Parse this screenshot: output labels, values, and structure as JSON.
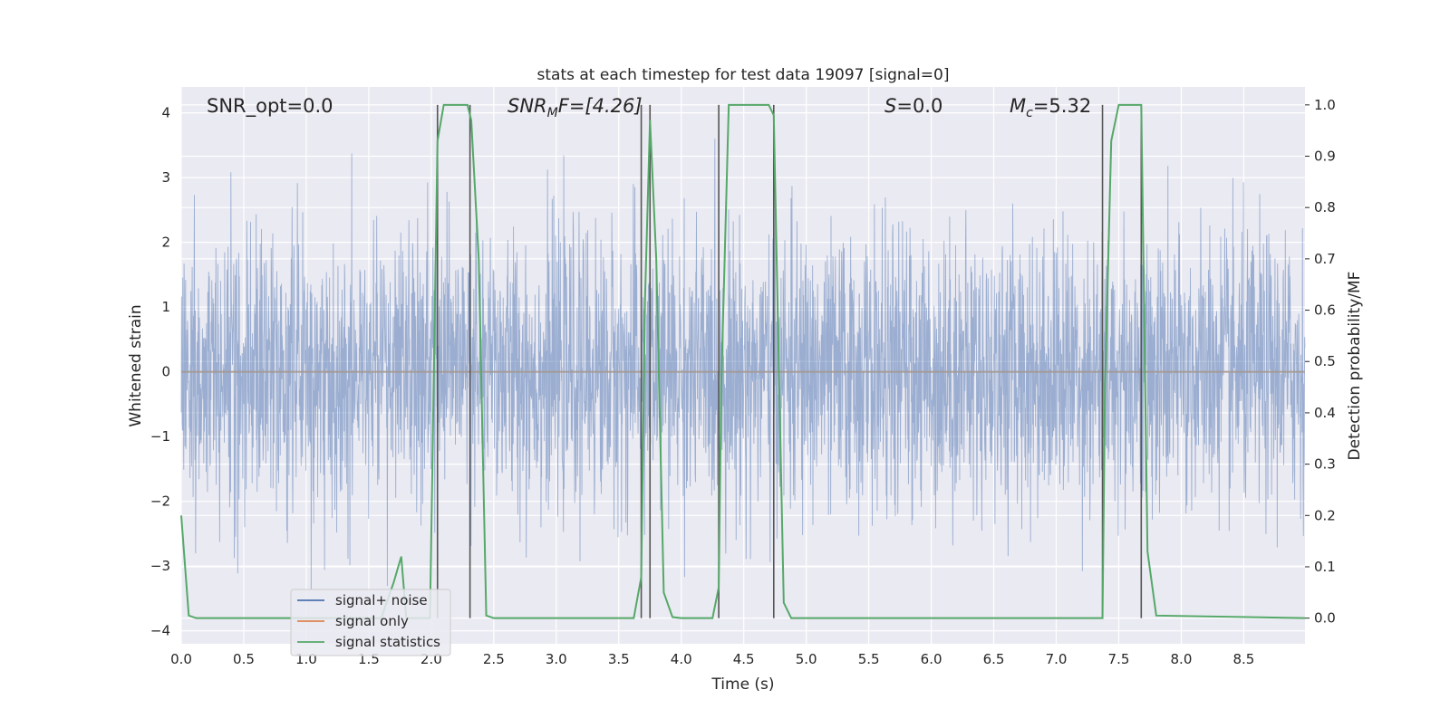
{
  "chart_data": {
    "type": "line",
    "title": "stats at each timestep for test data 19097 [signal=0]",
    "xlabel": "Time (s)",
    "ylabel": "Whitened strain",
    "y2label": "Detection probability/MF",
    "xlim": [
      0.0,
      8.99
    ],
    "ylim": [
      -4.2,
      4.4
    ],
    "y2lim": [
      -0.05,
      1.035
    ],
    "xticks": [
      "0.0",
      "0.5",
      "1.0",
      "1.5",
      "2.0",
      "2.5",
      "3.0",
      "3.5",
      "4.0",
      "4.5",
      "5.0",
      "5.5",
      "6.0",
      "6.5",
      "7.0",
      "7.5",
      "8.0",
      "8.5"
    ],
    "yticks": [
      "4",
      "3",
      "2",
      "1",
      "0",
      "−1",
      "−2",
      "−3",
      "−4"
    ],
    "y2ticks": [
      "1.0",
      "0.9",
      "0.8",
      "0.7",
      "0.6",
      "0.5",
      "0.4",
      "0.3",
      "0.2",
      "0.1",
      "0.0"
    ],
    "grid": true,
    "legend_position": "lower-left",
    "annotations": {
      "snr_opt": "SNR_opt=0.0",
      "snr_mf_prefix": "SNR",
      "snr_mf_sub": "M",
      "snr_mf_suffix": "F=[4.26]",
      "s_prefix": "S",
      "s_suffix": "=0.0",
      "mc_prefix": "M",
      "mc_sub": "c",
      "mc_suffix": "=5.32"
    },
    "series": [
      {
        "name": "signal+ noise",
        "color": "#4c72b0",
        "axis": "left",
        "noise_envelope": {
          "typical_peak": 2.2,
          "max": 3.6,
          "min": -3.6
        }
      },
      {
        "name": "signal only",
        "color": "#dd8452",
        "axis": "left",
        "constant": 0.0
      },
      {
        "name": "signal statistics",
        "color": "#55a868",
        "axis": "right",
        "x": [
          0.0,
          0.06,
          0.12,
          1.6,
          1.7,
          1.76,
          1.8,
          1.99,
          2.05,
          2.1,
          2.15,
          2.29,
          2.32,
          2.38,
          2.44,
          2.5,
          3.62,
          3.68,
          3.71,
          3.75,
          3.8,
          3.86,
          3.93,
          4.0,
          4.25,
          4.3,
          4.32,
          4.38,
          4.7,
          4.74,
          4.78,
          4.82,
          4.88,
          7.37,
          7.39,
          7.44,
          7.5,
          7.55,
          7.68,
          7.73,
          7.8,
          8.99
        ],
        "y": [
          0.2,
          0.005,
          0.0,
          0.0,
          0.07,
          0.12,
          0.0,
          0.0,
          0.93,
          1.0,
          1.0,
          1.0,
          0.97,
          0.7,
          0.005,
          0.0,
          0.0,
          0.08,
          0.62,
          0.97,
          0.7,
          0.05,
          0.002,
          0.0,
          0.0,
          0.06,
          0.45,
          1.0,
          1.0,
          0.98,
          0.5,
          0.03,
          0.0,
          0.0,
          0.45,
          0.93,
          1.0,
          1.0,
          1.0,
          0.13,
          0.005,
          0.0
        ]
      }
    ],
    "vlines": [
      2.05,
      2.31,
      3.68,
      3.75,
      4.3,
      4.74,
      7.37,
      7.68
    ]
  }
}
